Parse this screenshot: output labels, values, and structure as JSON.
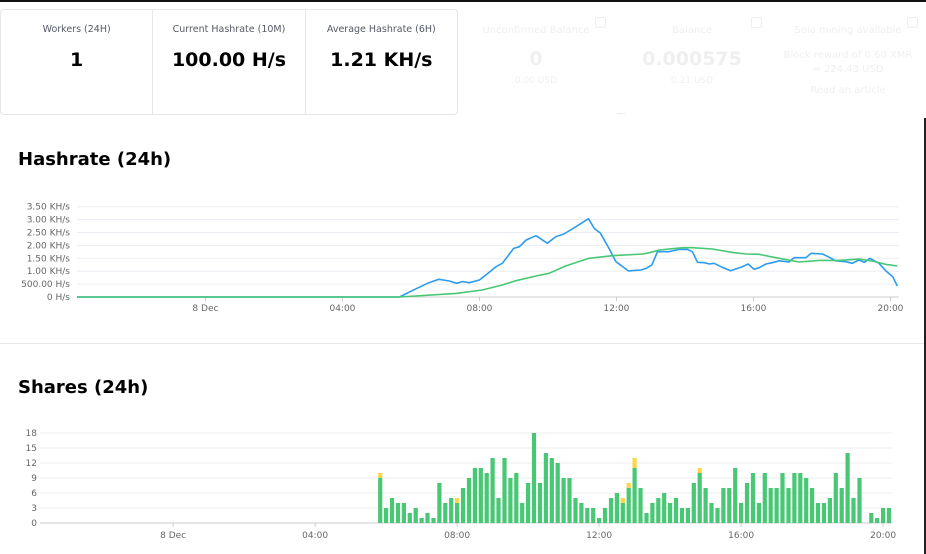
{
  "stats": [
    {
      "label": "Workers (24H)",
      "value": "1"
    },
    {
      "label": "Current Hashrate (10M)",
      "value": "100.00 H/s"
    },
    {
      "label": "Average Hashrate (6H)",
      "value": "1.21 KH/s"
    }
  ],
  "faded_stats": [
    {
      "label": "Unconfirmed Balance",
      "value": "0",
      "sub": "0.00 USD"
    },
    {
      "label": "Balance",
      "value": "0.000575",
      "sub": "0.21 USD"
    },
    {
      "label": "Solo mining available",
      "value_lines": [
        "Block reward of 0.60 XMR",
        "≈ 224.43 USD"
      ],
      "link": "Read an article"
    }
  ],
  "hashrate_title": "Hashrate (24h)",
  "shares_title": "Shares (24h)",
  "colors": {
    "blue": "#2d9cf0",
    "green": "#48c774",
    "yellow": "#ffd54a",
    "grid": "#ebedf2"
  },
  "chart_data": [
    {
      "type": "line",
      "title": "Hashrate (24h)",
      "xrange": [
        "7 Dec 20:15",
        "8 Dec 20:15"
      ],
      "xticks": [
        {
          "t": "8 Dec 00:00",
          "label": "8 Dec"
        },
        {
          "t": "8 Dec 04:00",
          "label": "04:00"
        },
        {
          "t": "8 Dec 08:00",
          "label": "08:00"
        },
        {
          "t": "8 Dec 12:00",
          "label": "12:00"
        },
        {
          "t": "8 Dec 16:00",
          "label": "16:00"
        },
        {
          "t": "8 Dec 20:00",
          "label": "20:00"
        }
      ],
      "ylim": [
        0,
        3500
      ],
      "yticks": [
        {
          "v": 0,
          "label": "0 H/s"
        },
        {
          "v": 500,
          "label": "500.00 H/s"
        },
        {
          "v": 1000,
          "label": "1.00 KH/s"
        },
        {
          "v": 1500,
          "label": "1.50 KH/s"
        },
        {
          "v": 2000,
          "label": "2.00 KH/s"
        },
        {
          "v": 2500,
          "label": "2.50 KH/s"
        },
        {
          "v": 3000,
          "label": "3.00 KH/s"
        },
        {
          "v": 3500,
          "label": "3.50 KH/s"
        }
      ],
      "grid": true,
      "series": [
        {
          "color": "#2d9cf0",
          "points": [
            [
              "7 Dec 20:15",
              0
            ],
            [
              "8 Dec 05:40",
              0
            ],
            [
              "8 Dec 06:02",
              245
            ],
            [
              "8 Dec 06:29",
              530
            ],
            [
              "8 Dec 06:49",
              685
            ],
            [
              "8 Dec 07:07",
              620
            ],
            [
              "8 Dec 07:20",
              530
            ],
            [
              "8 Dec 07:30",
              595
            ],
            [
              "8 Dec 07:42",
              555
            ],
            [
              "8 Dec 08:00",
              660
            ],
            [
              "8 Dec 08:11",
              850
            ],
            [
              "8 Dec 08:29",
              1175
            ],
            [
              "8 Dec 08:40",
              1305
            ],
            [
              "8 Dec 09:00",
              1885
            ],
            [
              "8 Dec 09:10",
              1950
            ],
            [
              "8 Dec 09:22",
              2210
            ],
            [
              "8 Dec 09:39",
              2375
            ],
            [
              "8 Dec 09:59",
              2080
            ],
            [
              "8 Dec 10:14",
              2340
            ],
            [
              "8 Dec 10:28",
              2440
            ],
            [
              "8 Dec 10:49",
              2725
            ],
            [
              "8 Dec 11:11",
              3035
            ],
            [
              "8 Dec 11:21",
              2660
            ],
            [
              "8 Dec 11:32",
              2470
            ],
            [
              "8 Dec 11:47",
              1885
            ],
            [
              "8 Dec 11:59",
              1370
            ],
            [
              "8 Dec 12:21",
              1010
            ],
            [
              "8 Dec 12:43",
              1045
            ],
            [
              "8 Dec 12:52",
              1110
            ],
            [
              "8 Dec 13:02",
              1240
            ],
            [
              "8 Dec 13:12",
              1755
            ],
            [
              "8 Dec 13:32",
              1755
            ],
            [
              "8 Dec 13:50",
              1845
            ],
            [
              "8 Dec 14:04",
              1845
            ],
            [
              "8 Dec 14:13",
              1755
            ],
            [
              "8 Dec 14:22",
              1345
            ],
            [
              "8 Dec 14:34",
              1330
            ],
            [
              "8 Dec 14:43",
              1280
            ],
            [
              "8 Dec 14:51",
              1305
            ],
            [
              "8 Dec 15:03",
              1175
            ],
            [
              "8 Dec 15:20",
              1020
            ],
            [
              "8 Dec 15:38",
              1150
            ],
            [
              "8 Dec 15:51",
              1280
            ],
            [
              "8 Dec 16:01",
              1075
            ],
            [
              "8 Dec 16:10",
              1135
            ],
            [
              "8 Dec 16:22",
              1280
            ],
            [
              "8 Dec 16:33",
              1330
            ],
            [
              "8 Dec 16:45",
              1405
            ],
            [
              "8 Dec 17:02",
              1355
            ],
            [
              "8 Dec 17:11",
              1525
            ],
            [
              "8 Dec 17:32",
              1525
            ],
            [
              "8 Dec 17:41",
              1695
            ],
            [
              "8 Dec 18:01",
              1665
            ],
            [
              "8 Dec 18:13",
              1540
            ],
            [
              "8 Dec 18:24",
              1405
            ],
            [
              "8 Dec 18:42",
              1370
            ],
            [
              "8 Dec 18:53",
              1305
            ],
            [
              "8 Dec 19:05",
              1435
            ],
            [
              "8 Dec 19:14",
              1345
            ],
            [
              "8 Dec 19:24",
              1500
            ],
            [
              "8 Dec 19:40",
              1305
            ],
            [
              "8 Dec 19:52",
              1010
            ],
            [
              "8 Dec 20:04",
              785
            ],
            [
              "8 Dec 20:12",
              425
            ]
          ]
        },
        {
          "color": "#48c774",
          "points": [
            [
              "7 Dec 20:15",
              0
            ],
            [
              "8 Dec 05:40",
              0
            ],
            [
              "8 Dec 07:19",
              140
            ],
            [
              "8 Dec 08:05",
              270
            ],
            [
              "8 Dec 08:40",
              465
            ],
            [
              "8 Dec 09:04",
              630
            ],
            [
              "8 Dec 09:39",
              815
            ],
            [
              "8 Dec 10:02",
              920
            ],
            [
              "8 Dec 10:31",
              1200
            ],
            [
              "8 Dec 11:12",
              1500
            ],
            [
              "8 Dec 11:53",
              1600
            ],
            [
              "8 Dec 12:46",
              1665
            ],
            [
              "8 Dec 12:57",
              1715
            ],
            [
              "8 Dec 13:15",
              1820
            ],
            [
              "8 Dec 13:56",
              1910
            ],
            [
              "8 Dec 14:13",
              1910
            ],
            [
              "8 Dec 14:48",
              1860
            ],
            [
              "8 Dec 15:23",
              1730
            ],
            [
              "8 Dec 15:47",
              1665
            ],
            [
              "8 Dec 16:10",
              1655
            ],
            [
              "8 Dec 16:45",
              1500
            ],
            [
              "8 Dec 17:20",
              1355
            ],
            [
              "8 Dec 17:55",
              1420
            ],
            [
              "8 Dec 18:30",
              1420
            ],
            [
              "8 Dec 19:05",
              1470
            ],
            [
              "8 Dec 19:28",
              1395
            ],
            [
              "8 Dec 19:52",
              1265
            ],
            [
              "8 Dec 20:12",
              1200
            ]
          ]
        }
      ]
    },
    {
      "type": "bar",
      "stacked": true,
      "title": "Shares (24h)",
      "xrange": [
        "7 Dec 20:15",
        "8 Dec 20:15"
      ],
      "xticks": [
        {
          "t": "8 Dec 00:00",
          "label": "8 Dec"
        },
        {
          "t": "8 Dec 04:00",
          "label": "04:00"
        },
        {
          "t": "8 Dec 08:00",
          "label": "08:00"
        },
        {
          "t": "8 Dec 12:00",
          "label": "12:00"
        },
        {
          "t": "8 Dec 16:00",
          "label": "16:00"
        },
        {
          "t": "8 Dec 20:00",
          "label": "20:00"
        }
      ],
      "ylim": [
        0,
        18
      ],
      "yticks": [
        0,
        3,
        6,
        9,
        12,
        15,
        18
      ],
      "grid": true,
      "first_bar": "8 Dec 05:50",
      "bar_interval_minutes": 10,
      "series": [
        {
          "color": "#48c774",
          "values": [
            9,
            3,
            5,
            4,
            4,
            2,
            3,
            1,
            2,
            1,
            8,
            4,
            5,
            4,
            7,
            9,
            11,
            11,
            10,
            13,
            5,
            13,
            9,
            10,
            4,
            8,
            18,
            8,
            14,
            13,
            12,
            9,
            9,
            5,
            4,
            3,
            3,
            1,
            3,
            5,
            6,
            4,
            7,
            11,
            7,
            2,
            4,
            5,
            6,
            4,
            5,
            3,
            3,
            8,
            10,
            7,
            4,
            3,
            7,
            7,
            11,
            4,
            8,
            10,
            4,
            10,
            7,
            7,
            10,
            7,
            10,
            10,
            9,
            7,
            4,
            4,
            5,
            10,
            7,
            14,
            5,
            9,
            0,
            2,
            1,
            3,
            3
          ]
        },
        {
          "color": "#ffd54a",
          "values": [
            1,
            0,
            0,
            0,
            0,
            0,
            0,
            0,
            0,
            0,
            0,
            0,
            0,
            1,
            0,
            0,
            0,
            0,
            0,
            0,
            0,
            0,
            0,
            0,
            0,
            0,
            0,
            0,
            0,
            0,
            0,
            0,
            0,
            0,
            0,
            0,
            0,
            0,
            0,
            0,
            0,
            1,
            1,
            2,
            0,
            0,
            0,
            0,
            0,
            0,
            0,
            0,
            0,
            0,
            1,
            0,
            0,
            0,
            0,
            0,
            0,
            0,
            0,
            0,
            0,
            0,
            0,
            0,
            0,
            0,
            0,
            0,
            0,
            0,
            0,
            0,
            0,
            0,
            0,
            0,
            0,
            0,
            0,
            0,
            0,
            0,
            0
          ]
        }
      ]
    }
  ]
}
